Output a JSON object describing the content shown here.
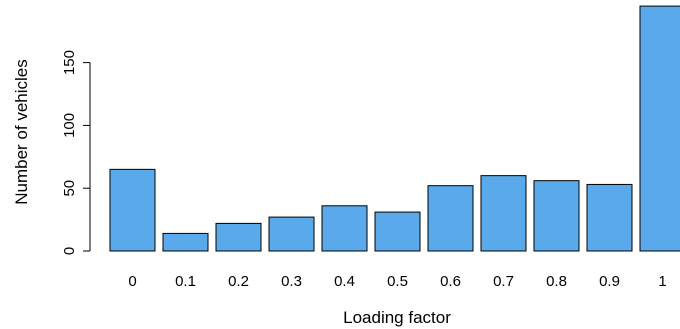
{
  "chart_data": {
    "type": "bar",
    "title": "",
    "xlabel": "Loading factor",
    "ylabel": "Number of vehicles",
    "categories": [
      "0",
      "0.1",
      "0.2",
      "0.3",
      "0.4",
      "0.5",
      "0.6",
      "0.7",
      "0.8",
      "0.9",
      "1"
    ],
    "values": [
      65,
      14,
      22,
      27,
      36,
      31,
      52,
      60,
      56,
      53,
      195
    ],
    "yticks": [
      "0",
      "50",
      "100",
      "150"
    ],
    "ylim": [
      0,
      195
    ],
    "grid": false,
    "legend": "none",
    "colors": {
      "bar_fill": "#5aaaeb",
      "bar_stroke": "#000000",
      "axis": "#000000"
    }
  }
}
